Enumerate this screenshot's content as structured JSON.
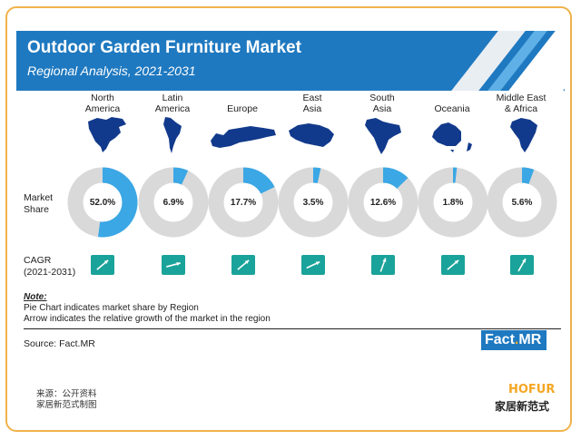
{
  "header": {
    "title": "Outdoor Garden Furniture Market",
    "subtitle": "Regional Analysis, 2021-2031"
  },
  "row_labels": {
    "market_share": "Market\nShare",
    "cagr": "CAGR\n(2021-2031)"
  },
  "chart_data": {
    "type": "pie",
    "title": "Outdoor Garden Furniture Market",
    "subtitle": "Regional Analysis, 2021-2031",
    "categories": [
      "North\nAmerica",
      "Latin\nAmerica",
      "Europe",
      "East\nAsia",
      "South\nAsia",
      "Oceania",
      "Middle East\n& Africa"
    ],
    "market_share_percent": [
      52.0,
      6.9,
      17.7,
      3.5,
      12.6,
      1.8,
      5.6
    ],
    "market_share_labels": [
      "52.0%",
      "6.9%",
      "17.7%",
      "3.5%",
      "12.6%",
      "1.8%",
      "5.6%"
    ],
    "cagr_arrow_angle_deg": [
      40,
      15,
      40,
      25,
      70,
      40,
      60
    ],
    "colors": {
      "share": "#3ba7e5",
      "remainder": "#d9d9d9",
      "arrow_box": "#1aa39a",
      "map": "#123a8c"
    }
  },
  "regions": [
    {
      "name": "North\nAmerica",
      "map_icon": "north-america-map-icon"
    },
    {
      "name": "Latin\nAmerica",
      "map_icon": "latin-america-map-icon"
    },
    {
      "name": "Europe",
      "map_icon": "europe-map-icon"
    },
    {
      "name": "East\nAsia",
      "map_icon": "east-asia-map-icon"
    },
    {
      "name": "South\nAsia",
      "map_icon": "south-asia-map-icon"
    },
    {
      "name": "Oceania",
      "map_icon": "oceania-map-icon"
    },
    {
      "name": "Middle East\n& Africa",
      "map_icon": "middle-east-africa-map-icon"
    }
  ],
  "note": {
    "title": "Note:",
    "line1": "Pie Chart indicates market share by Region",
    "line2": "Arrow indicates the relative growth of the market in the region"
  },
  "source": "Source: Fact.MR",
  "logos": {
    "fact_mr_left": "Fact",
    "fact_mr_dot": ".",
    "fact_mr_right": "MR",
    "hofur": "HOFUR",
    "hofur_cn": "家居新范式"
  },
  "cn_source": {
    "line1": "来源：公开资料",
    "line2": "家居新范式制图"
  }
}
